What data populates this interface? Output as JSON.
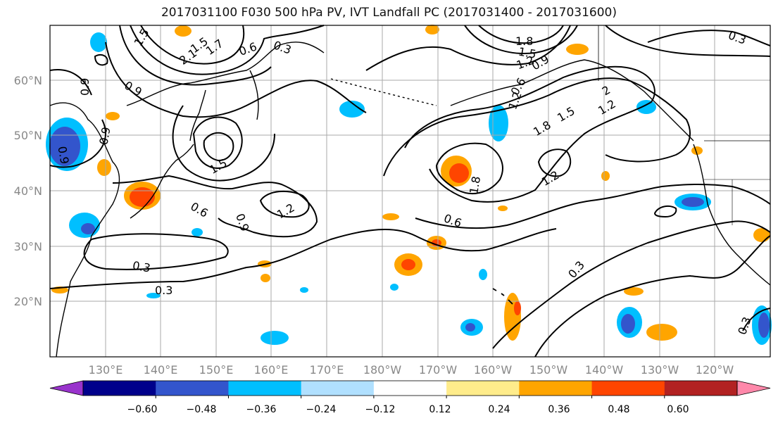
{
  "title": "2017031100 F030 500 hPa PV, IVT Landfall PC (2017031400 - 2017031600)",
  "map": {
    "lat_labels": [
      "60°N",
      "50°N",
      "40°N",
      "30°N",
      "20°N"
    ],
    "lon_labels": [
      "130°E",
      "140°E",
      "150°E",
      "160°E",
      "170°E",
      "180°W",
      "170°W",
      "160°W",
      "150°W",
      "140°W",
      "130°W",
      "120°W"
    ],
    "contour_labels": [
      "1.5",
      "2.1",
      "1.5",
      "1.7",
      "0.6",
      "0.3",
      "0.9",
      "0.9",
      "0.9",
      "0.9",
      "1.5",
      "1.2",
      "0.6",
      "0.9",
      "1.2",
      "0.6",
      "0.3",
      "0.3",
      "1.8",
      "1.5",
      "1.2",
      "0.9",
      "2",
      "1.8",
      "1.5",
      "1.2",
      "1.8",
      "1.2",
      "0.6",
      "0.3",
      "0.3",
      "0.3"
    ]
  },
  "colorbar": {
    "colors": [
      "#9933cc",
      "#00008b",
      "#3355cc",
      "#00bfff",
      "#b0e0ff",
      "#ffffff",
      "#ffec8b",
      "#ffa500",
      "#ff4500",
      "#b22222",
      "#ff88aa"
    ],
    "tick_labels": [
      "−0.60",
      "−0.48",
      "−0.36",
      "−0.24",
      "−0.12",
      "0.12",
      "0.24",
      "0.36",
      "0.48",
      "0.60"
    ]
  }
}
